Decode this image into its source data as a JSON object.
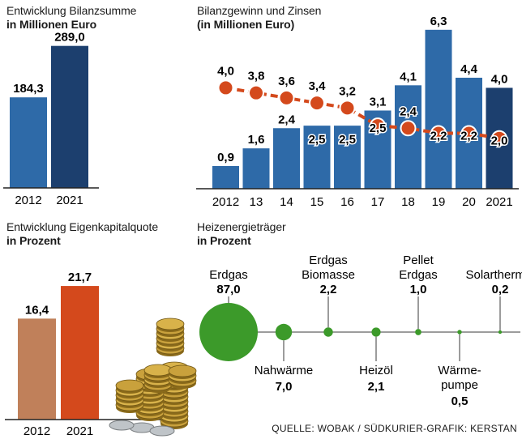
{
  "colors": {
    "bar_blue": "#2e6aa8",
    "bar_dark_blue": "#1c3f6e",
    "dot_orange": "#d4491c",
    "equity_2012": "#c0805a",
    "equity_2021": "#d4491c",
    "energy_green": "#3c9a2a",
    "axis": "#222222",
    "text": "#1a1a1a"
  },
  "chart_data": [
    {
      "id": "bilanzsumme",
      "type": "bar",
      "title": "Entwicklung Bilanzsumme",
      "subtitle": "in Millionen Euro",
      "categories": [
        "2012",
        "2021"
      ],
      "values": [
        184.3,
        289.0
      ],
      "labels": [
        "184,3",
        "289,0"
      ],
      "ylim": [
        0,
        300
      ]
    },
    {
      "id": "gewinn_zinsen",
      "type": "bar",
      "title": "Bilanzgewinn und Zinsen",
      "subtitle": "(in Millionen Euro)",
      "categories": [
        "2012",
        "13",
        "14",
        "15",
        "16",
        "17",
        "18",
        "19",
        "20",
        "2021"
      ],
      "series": [
        {
          "name": "Bilanzgewinn",
          "type": "bar",
          "values": [
            0.9,
            1.6,
            2.4,
            2.5,
            2.5,
            3.1,
            4.1,
            6.3,
            4.4,
            4.0
          ],
          "labels": [
            "0,9",
            "1,6",
            "2,4",
            "2,5",
            "2,5",
            "3,1",
            "4,1",
            "6,3",
            "4,4",
            "4,0"
          ]
        },
        {
          "name": "Zinsen",
          "type": "line",
          "values": [
            4.0,
            3.8,
            3.6,
            3.4,
            3.2,
            2.5,
            2.4,
            2.2,
            2.2,
            2.0
          ],
          "labels": [
            "4,0",
            "3,8",
            "3,6",
            "3,4",
            "3,2",
            "2,5",
            "2,4",
            "2,2",
            "2,2",
            "2,0"
          ]
        }
      ],
      "ylim": [
        0,
        7
      ]
    },
    {
      "id": "eigenkapitalquote",
      "type": "bar",
      "title": "Entwicklung Eigenkapitalquote",
      "subtitle": "in Prozent",
      "categories": [
        "2012",
        "2021"
      ],
      "values": [
        16.4,
        21.7
      ],
      "labels": [
        "16,4",
        "21,7"
      ],
      "ylim": [
        0,
        25
      ]
    },
    {
      "id": "heizenergie",
      "type": "bubble",
      "title": "Heizenergieträger",
      "subtitle": "in Prozent",
      "items": [
        {
          "name": "Erdgas",
          "value": 87.0,
          "label": "87,0",
          "label_pos": "above"
        },
        {
          "name": "Nahwärme",
          "value": 7.0,
          "label": "7,0",
          "label_pos": "below"
        },
        {
          "name": "Erdgas Biomasse",
          "value": 2.2,
          "label": "2,2",
          "label_pos": "above"
        },
        {
          "name": "Heizöl",
          "value": 2.1,
          "label": "2,1",
          "label_pos": "below"
        },
        {
          "name": "Pellet Erdgas",
          "value": 1.0,
          "label": "1,0",
          "label_pos": "above"
        },
        {
          "name": "Wärmepumpe",
          "value": 0.5,
          "label": "0,5",
          "label_pos": "below"
        },
        {
          "name": "Solarthermie",
          "value": 0.2,
          "label": "0,2",
          "label_pos": "above"
        }
      ]
    }
  ],
  "source": "QUELLE: WOBAK / SÜDKURIER-GRAFIK: KERSTAN"
}
